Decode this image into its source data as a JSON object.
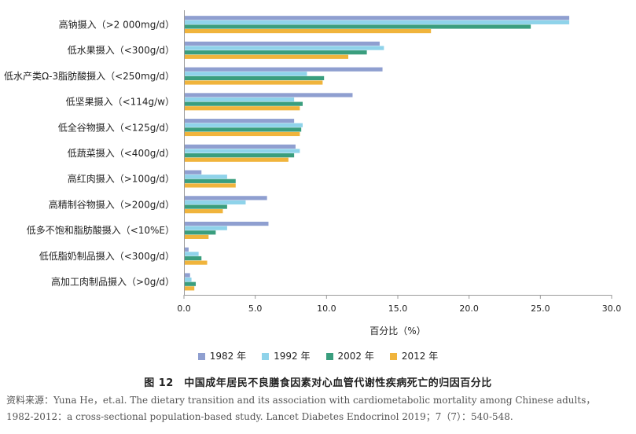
{
  "chart_data": {
    "type": "bar",
    "orientation": "horizontal",
    "categories": [
      "高钠摄入（>2 000mg/d）",
      "低水果摄入（<300g/d）",
      "低水产类Ω-3脂肪酸摄入（<250mg/d）",
      "低坚果摄入（<114g/w）",
      "低全谷物摄入（<125g/d）",
      "低蔬菜摄入（<400g/d）",
      "高红肉摄入（>100g/d）",
      "高精制谷物摄入（>200g/d）",
      "低多不饱和脂肪酸摄入（<10%E）",
      "低低脂奶制品摄入（<300g/d）",
      "高加工肉制品摄入（>0g/d）"
    ],
    "series": [
      {
        "name": "1982 年",
        "color": "#8f9fd0",
        "values": [
          27.0,
          13.7,
          13.9,
          11.8,
          7.7,
          7.8,
          1.2,
          5.8,
          5.9,
          0.3,
          0.4
        ]
      },
      {
        "name": "1992 年",
        "color": "#8fd3ea",
        "values": [
          27.0,
          14.0,
          8.6,
          7.7,
          8.3,
          8.1,
          3.0,
          4.3,
          3.0,
          1.0,
          0.5
        ]
      },
      {
        "name": "2002 年",
        "color": "#3a9e7e",
        "values": [
          24.3,
          12.8,
          9.8,
          8.3,
          8.2,
          7.7,
          3.6,
          3.0,
          2.2,
          1.2,
          0.8
        ]
      },
      {
        "name": "2012 年",
        "color": "#f0b43c",
        "values": [
          17.3,
          11.5,
          9.7,
          8.1,
          8.1,
          7.3,
          3.6,
          2.7,
          1.7,
          1.6,
          0.7
        ]
      }
    ],
    "xlabel": "百分比（%）",
    "ylabel": "",
    "xlim": [
      0,
      30
    ],
    "xticks": [
      "0.0",
      "5.0",
      "10.0",
      "15.0",
      "20.0",
      "25.0",
      "30.0"
    ],
    "grid": false,
    "legend_position": "bottom"
  },
  "caption": "图 12　中国成年居民不良膳食因素对心血管代谢性疾病死亡的归因百分比",
  "source_line1": "资料来源：Yuna He，et.al. The dietary transition and its association with cardiometabolic mortality among Chinese adults，",
  "source_line2": "1982-2012：a cross-sectional population-based study. Lancet Diabetes Endocrinol 2019；7（7）：540-548."
}
